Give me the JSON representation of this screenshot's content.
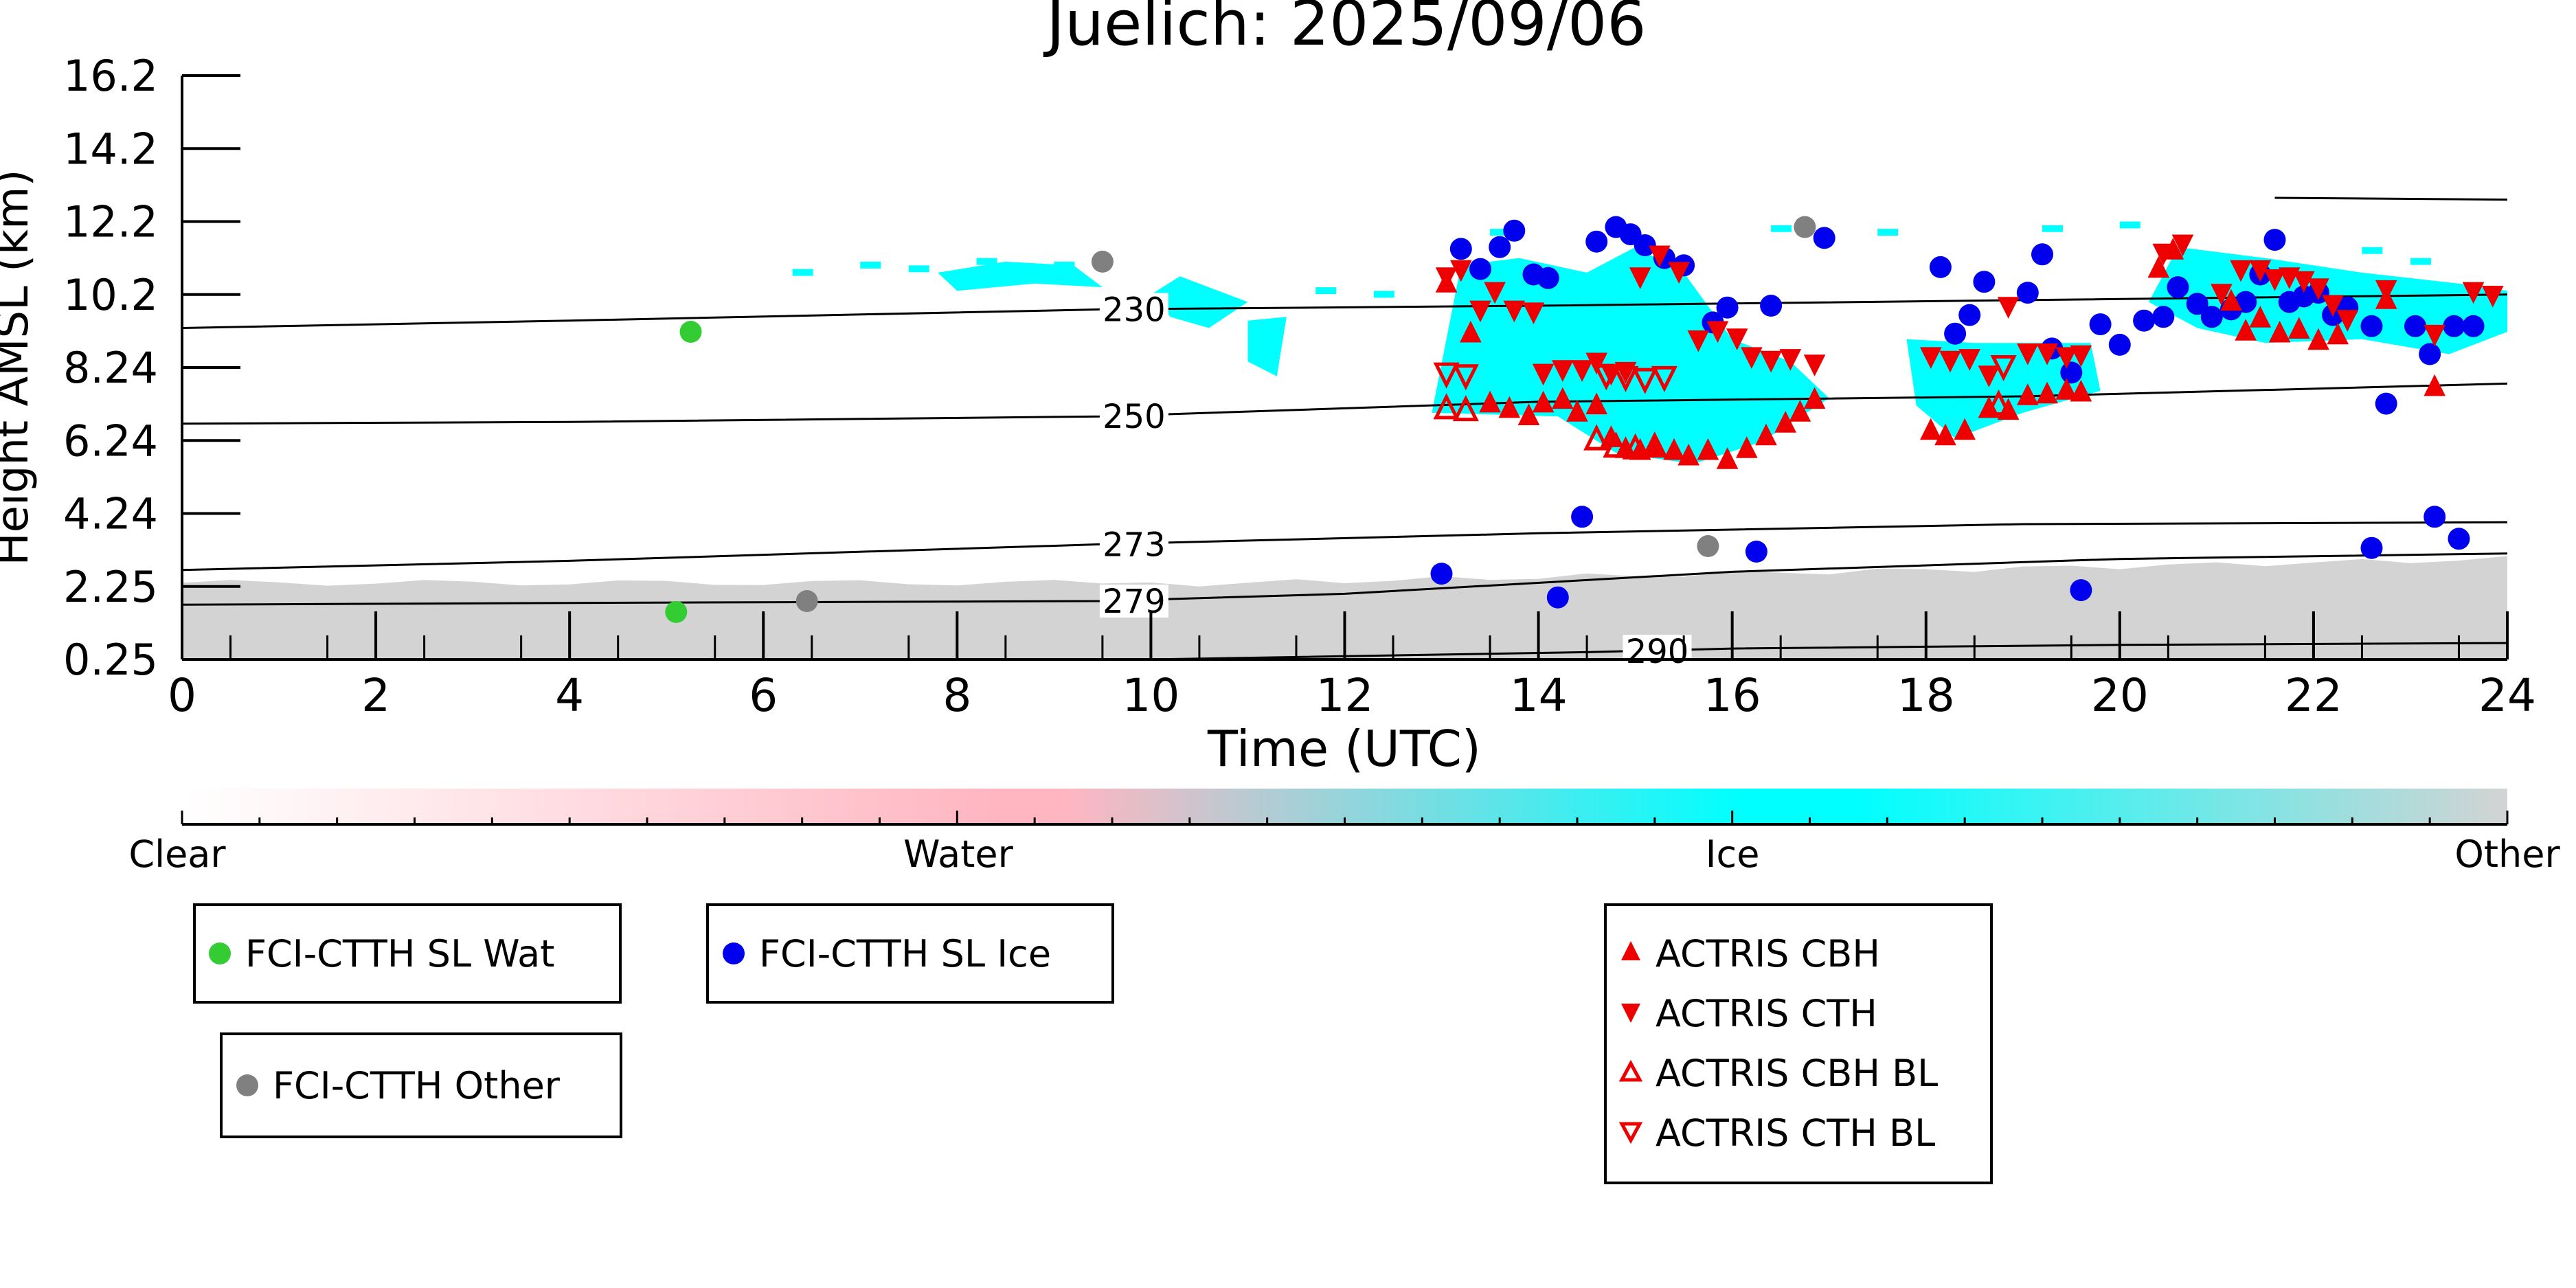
{
  "chart_data": {
    "type": "scatter",
    "title": "Juelich: 2025/09/06",
    "xlabel": "Time (UTC)",
    "ylabel": "Height AMSL (km)",
    "xlim": [
      0,
      24
    ],
    "x_ticks": [
      "0",
      "2",
      "4",
      "6",
      "8",
      "10",
      "12",
      "14",
      "16",
      "18",
      "20",
      "22",
      "24"
    ],
    "y_ticks": [
      "0.25",
      "2.25",
      "4.24",
      "6.24",
      "8.24",
      "10.2",
      "12.2",
      "14.2",
      "16.2"
    ],
    "y_tick_values": [
      0.25,
      2.25,
      4.24,
      6.24,
      8.24,
      10.2,
      12.2,
      14.2,
      16.2
    ],
    "colorbar": {
      "labels": [
        "Clear",
        "Water",
        "Ice",
        "Other"
      ],
      "colors": [
        "#ffffff",
        "#ffb6c1",
        "#00ffff",
        "#d3d3d3"
      ]
    },
    "isotherms": [
      {
        "label": "230",
        "points": [
          [
            0,
            9.3
          ],
          [
            4,
            9.5
          ],
          [
            9.5,
            9.8
          ],
          [
            14,
            9.9
          ],
          [
            19,
            10.05
          ],
          [
            24,
            10.2
          ]
        ],
        "label_at": 9.5
      },
      {
        "label": "250",
        "points": [
          [
            0,
            6.7
          ],
          [
            4,
            6.75
          ],
          [
            9.5,
            6.9
          ],
          [
            14,
            7.3
          ],
          [
            19,
            7.45
          ],
          [
            24,
            7.8
          ]
        ],
        "label_at": 9.5
      },
      {
        "label": "273",
        "points": [
          [
            0,
            2.7
          ],
          [
            4,
            2.95
          ],
          [
            9.5,
            3.4
          ],
          [
            14,
            3.7
          ],
          [
            19,
            3.95
          ],
          [
            24,
            4.0
          ]
        ],
        "label_at": 9.5
      },
      {
        "label": "279",
        "points": [
          [
            0,
            1.75
          ],
          [
            4,
            1.8
          ],
          [
            9.5,
            1.85
          ],
          [
            12,
            2.05
          ],
          [
            16,
            2.65
          ],
          [
            20,
            3.0
          ],
          [
            24,
            3.15
          ]
        ],
        "label_at": 9.5
      },
      {
        "label": "290",
        "points": [
          [
            10,
            0.25
          ],
          [
            14.5,
            0.45
          ],
          [
            16,
            0.55
          ],
          [
            20,
            0.65
          ],
          [
            24,
            0.7
          ]
        ],
        "label_at": 14.9
      }
    ],
    "series": [
      {
        "name": "FCI-CTTH SL Wat",
        "color": "#33cc33",
        "marker": "circle",
        "points": [
          [
            5.25,
            9.2
          ],
          [
            5.1,
            1.55
          ]
        ]
      },
      {
        "name": "FCI-CTTH SL Ice",
        "color": "#0000ee",
        "marker": "circle",
        "points": [
          [
            13.2,
            11.45
          ],
          [
            13.4,
            10.9
          ],
          [
            13.6,
            11.5
          ],
          [
            13.75,
            11.95
          ],
          [
            13.95,
            10.75
          ],
          [
            14.1,
            10.65
          ],
          [
            14.6,
            11.65
          ],
          [
            14.8,
            12.05
          ],
          [
            14.95,
            11.85
          ],
          [
            15.1,
            11.55
          ],
          [
            15.3,
            11.2
          ],
          [
            15.5,
            11.0
          ],
          [
            15.8,
            9.45
          ],
          [
            15.95,
            9.85
          ],
          [
            16.4,
            9.9
          ],
          [
            16.95,
            11.75
          ],
          [
            18.15,
            10.95
          ],
          [
            18.3,
            9.15
          ],
          [
            18.45,
            9.65
          ],
          [
            18.6,
            10.55
          ],
          [
            19.05,
            10.25
          ],
          [
            19.2,
            11.3
          ],
          [
            19.3,
            8.75
          ],
          [
            19.5,
            8.1
          ],
          [
            19.8,
            9.4
          ],
          [
            20.0,
            8.85
          ],
          [
            20.25,
            9.5
          ],
          [
            20.45,
            9.6
          ],
          [
            20.6,
            10.4
          ],
          [
            20.8,
            9.95
          ],
          [
            20.95,
            9.6
          ],
          [
            21.15,
            9.8
          ],
          [
            21.3,
            10.0
          ],
          [
            21.45,
            10.75
          ],
          [
            21.6,
            11.7
          ],
          [
            21.75,
            10.0
          ],
          [
            21.9,
            10.15
          ],
          [
            22.05,
            10.25
          ],
          [
            22.2,
            9.65
          ],
          [
            22.35,
            9.85
          ],
          [
            22.6,
            9.35
          ],
          [
            22.75,
            7.25
          ],
          [
            23.05,
            9.35
          ],
          [
            23.2,
            8.6
          ],
          [
            23.45,
            9.35
          ],
          [
            23.65,
            9.35
          ],
          [
            13.0,
            2.6
          ],
          [
            14.2,
            1.95
          ],
          [
            14.45,
            4.15
          ],
          [
            16.25,
            3.2
          ],
          [
            19.6,
            2.15
          ],
          [
            22.6,
            3.3
          ],
          [
            23.25,
            4.15
          ],
          [
            23.5,
            3.55
          ]
        ]
      },
      {
        "name": "FCI-CTTH Other",
        "color": "#808080",
        "marker": "circle",
        "points": [
          [
            9.5,
            11.1
          ],
          [
            16.75,
            12.05
          ],
          [
            15.75,
            3.35
          ],
          [
            6.45,
            1.85
          ]
        ]
      },
      {
        "name": "ACTRIS CBH",
        "color": "#ee0000",
        "marker": "triangle-up",
        "points": [
          [
            13.05,
            10.55
          ],
          [
            13.3,
            9.2
          ],
          [
            13.5,
            7.3
          ],
          [
            13.7,
            7.15
          ],
          [
            13.9,
            6.95
          ],
          [
            14.05,
            7.3
          ],
          [
            14.25,
            7.4
          ],
          [
            14.4,
            7.05
          ],
          [
            14.6,
            7.25
          ],
          [
            14.75,
            6.35
          ],
          [
            14.9,
            6.05
          ],
          [
            15.05,
            6.0
          ],
          [
            15.2,
            6.1
          ],
          [
            15.4,
            6.0
          ],
          [
            15.55,
            5.85
          ],
          [
            15.75,
            6.0
          ],
          [
            15.95,
            5.75
          ],
          [
            16.15,
            6.05
          ],
          [
            16.35,
            6.4
          ],
          [
            16.55,
            6.75
          ],
          [
            16.7,
            7.05
          ],
          [
            16.85,
            7.4
          ],
          [
            18.05,
            6.55
          ],
          [
            18.2,
            6.4
          ],
          [
            18.4,
            6.55
          ],
          [
            18.65,
            7.15
          ],
          [
            18.85,
            7.1
          ],
          [
            19.05,
            7.5
          ],
          [
            19.25,
            7.55
          ],
          [
            19.45,
            7.65
          ],
          [
            19.6,
            7.6
          ],
          [
            20.4,
            10.95
          ],
          [
            20.55,
            11.45
          ],
          [
            21.15,
            10.05
          ],
          [
            21.3,
            9.25
          ],
          [
            21.45,
            9.6
          ],
          [
            21.65,
            9.2
          ],
          [
            21.85,
            9.3
          ],
          [
            22.05,
            9.0
          ],
          [
            22.25,
            9.15
          ],
          [
            22.75,
            10.1
          ],
          [
            23.25,
            7.75
          ]
        ]
      },
      {
        "name": "ACTRIS CTH",
        "color": "#ee0000",
        "marker": "triangle-down",
        "points": [
          [
            13.05,
            10.65
          ],
          [
            13.2,
            10.85
          ],
          [
            13.4,
            9.75
          ],
          [
            13.55,
            10.25
          ],
          [
            13.75,
            9.75
          ],
          [
            13.95,
            9.7
          ],
          [
            14.05,
            8.05
          ],
          [
            14.25,
            8.15
          ],
          [
            14.45,
            8.15
          ],
          [
            14.6,
            8.35
          ],
          [
            14.75,
            8.05
          ],
          [
            14.9,
            8.1
          ],
          [
            15.05,
            10.65
          ],
          [
            15.25,
            11.25
          ],
          [
            15.45,
            10.8
          ],
          [
            15.65,
            8.95
          ],
          [
            15.85,
            9.2
          ],
          [
            16.05,
            9.0
          ],
          [
            16.2,
            8.5
          ],
          [
            16.4,
            8.4
          ],
          [
            16.6,
            8.45
          ],
          [
            16.85,
            8.3
          ],
          [
            18.05,
            8.5
          ],
          [
            18.25,
            8.4
          ],
          [
            18.45,
            8.45
          ],
          [
            18.65,
            8.0
          ],
          [
            18.85,
            9.85
          ],
          [
            19.05,
            8.6
          ],
          [
            19.25,
            8.6
          ],
          [
            19.45,
            8.5
          ],
          [
            19.6,
            8.55
          ],
          [
            20.45,
            11.3
          ],
          [
            20.65,
            11.55
          ],
          [
            21.05,
            10.2
          ],
          [
            21.25,
            10.85
          ],
          [
            21.45,
            10.85
          ],
          [
            21.6,
            10.6
          ],
          [
            21.75,
            10.65
          ],
          [
            21.9,
            10.55
          ],
          [
            22.05,
            10.35
          ],
          [
            22.2,
            9.9
          ],
          [
            22.35,
            9.5
          ],
          [
            22.75,
            10.3
          ],
          [
            23.25,
            9.1
          ],
          [
            23.65,
            10.25
          ],
          [
            23.85,
            10.15
          ]
        ]
      },
      {
        "name": "ACTRIS CBH BL",
        "color": "#ee0000",
        "marker": "triangle-up-open",
        "points": [
          [
            13.05,
            7.15
          ],
          [
            13.25,
            7.1
          ],
          [
            14.6,
            6.3
          ],
          [
            14.8,
            6.1
          ],
          [
            15.0,
            6.05
          ],
          [
            15.2,
            6.1
          ],
          [
            18.75,
            7.25
          ]
        ]
      },
      {
        "name": "ACTRIS CTH BL",
        "color": "#ee0000",
        "marker": "triangle-down-open",
        "points": [
          [
            13.05,
            8.05
          ],
          [
            13.25,
            8.0
          ],
          [
            14.7,
            8.0
          ],
          [
            14.9,
            7.95
          ],
          [
            15.1,
            7.9
          ],
          [
            15.3,
            7.95
          ],
          [
            18.8,
            8.25
          ]
        ]
      }
    ]
  }
}
